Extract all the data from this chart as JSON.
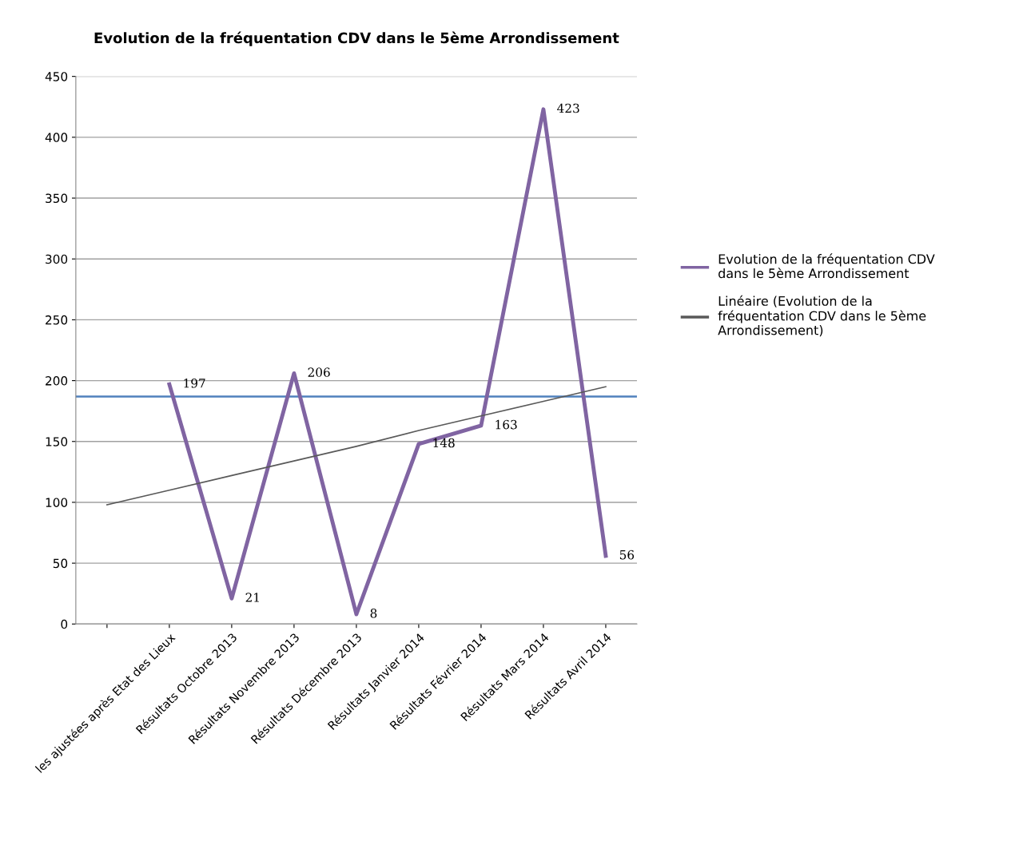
{
  "chart_data": {
    "type": "line",
    "title": "Evolution de la fréquentation CDV dans le 5ème Arrondissement",
    "categories": [
      null,
      "les ajustées après Etat des Lieux",
      "Résultats Octobre 2013",
      "Résultats Novembre 2013",
      "Résultats Décembre 2013",
      "Résultats Janvier 2014",
      "Résultats Février 2014",
      "Résultats Mars 2014",
      "Résultats Avril 2014"
    ],
    "series": [
      {
        "name": "Evolution de la fréquentation CDV dans le 5ème Arrondissement",
        "color": "#8064a2",
        "values": [
          null,
          197,
          21,
          206,
          8,
          148,
          163,
          423,
          56
        ],
        "value_labels": [
          null,
          "197",
          "21",
          "206",
          "8",
          "148",
          "163",
          "423",
          "56"
        ]
      },
      {
        "name": "Linéaire (Evolution de la fréquentation CDV dans le 5ème Arrondissement)",
        "color": "#595959",
        "values": [
          98,
          110,
          122,
          134,
          146,
          159,
          171,
          183,
          195
        ]
      }
    ],
    "ref_lines": [
      {
        "axis": "y",
        "value": 187,
        "color": "#4f81bd"
      }
    ],
    "ylim": [
      0,
      450
    ],
    "yticks": [
      0,
      50,
      100,
      150,
      200,
      250,
      300,
      350,
      400,
      450
    ],
    "grid": "y",
    "legend": "right",
    "marker": "none",
    "line_style": "solid"
  }
}
